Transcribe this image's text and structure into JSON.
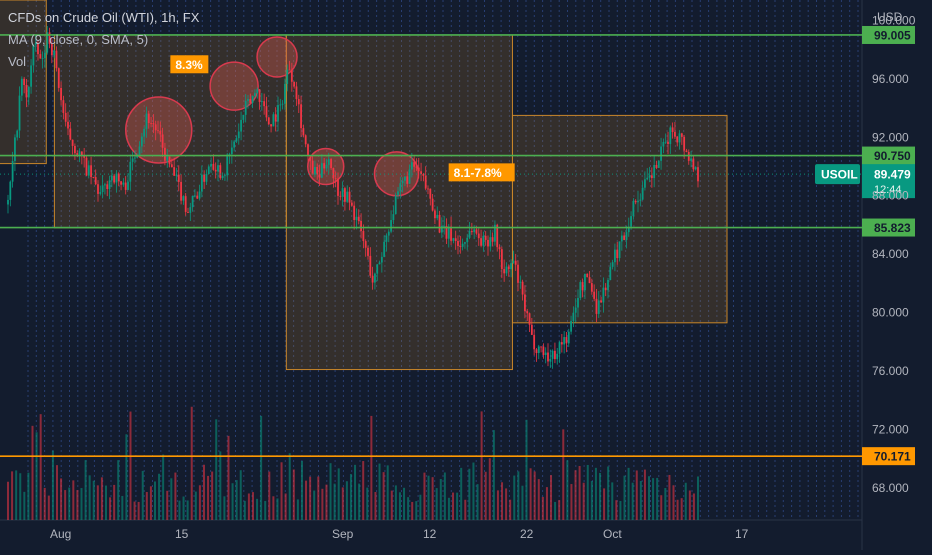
{
  "header": {
    "title": "CFDs on Crude Oil (WTI), 1h, FX",
    "indicator": "MA (9, close, 0, SMA, 5)",
    "volume": "Vol"
  },
  "chart_data": {
    "type": "candlestick",
    "symbol": "USOIL",
    "currency": "USD",
    "yaxis": {
      "ticks": [
        100,
        96,
        92,
        88,
        84,
        80,
        76,
        72,
        68
      ],
      "tick_labels": [
        "100.000",
        "96.000",
        "92.000",
        "88.000",
        "84.000",
        "80.000",
        "76.000",
        "72.000",
        "68.000"
      ],
      "range": [
        65.8,
        101.4
      ]
    },
    "xaxis": {
      "tick_labels": [
        "Aug",
        "15",
        "Sep",
        "12",
        "22",
        "Oct",
        "17"
      ]
    },
    "price_series": [
      {
        "t": 0.0,
        "v": 87.4
      },
      {
        "t": 0.6,
        "v": 91.5
      },
      {
        "t": 1.2,
        "v": 96.0
      },
      {
        "t": 1.6,
        "v": 94.5
      },
      {
        "t": 2.2,
        "v": 98.2
      },
      {
        "t": 3.0,
        "v": 97.0
      },
      {
        "t": 3.4,
        "v": 99.2
      },
      {
        "t": 4.0,
        "v": 97.5
      },
      {
        "t": 4.5,
        "v": 95.0
      },
      {
        "t": 5.0,
        "v": 92.5
      },
      {
        "t": 6.0,
        "v": 91.0
      },
      {
        "t": 7.0,
        "v": 89.5
      },
      {
        "t": 8.0,
        "v": 88.0
      },
      {
        "t": 9.0,
        "v": 89.5
      },
      {
        "t": 10.0,
        "v": 88.5
      },
      {
        "t": 11.0,
        "v": 91.0
      },
      {
        "t": 12.0,
        "v": 93.5
      },
      {
        "t": 12.8,
        "v": 92.5
      },
      {
        "t": 13.5,
        "v": 90.8
      },
      {
        "t": 14.5,
        "v": 89.0
      },
      {
        "t": 15.5,
        "v": 87.0
      },
      {
        "t": 16.5,
        "v": 88.5
      },
      {
        "t": 17.5,
        "v": 90.5
      },
      {
        "t": 18.5,
        "v": 89.5
      },
      {
        "t": 19.5,
        "v": 91.5
      },
      {
        "t": 20.5,
        "v": 94.0
      },
      {
        "t": 21.5,
        "v": 95.3
      },
      {
        "t": 22.5,
        "v": 93.0
      },
      {
        "t": 23.5,
        "v": 94.0
      },
      {
        "t": 24.2,
        "v": 97.0
      },
      {
        "t": 24.8,
        "v": 95.5
      },
      {
        "t": 25.4,
        "v": 92.5
      },
      {
        "t": 26.0,
        "v": 90.0
      },
      {
        "t": 26.8,
        "v": 89.2
      },
      {
        "t": 27.6,
        "v": 90.8
      },
      {
        "t": 28.4,
        "v": 88.5
      },
      {
        "t": 29.2,
        "v": 88.0
      },
      {
        "t": 30.0,
        "v": 86.5
      },
      {
        "t": 30.8,
        "v": 84.5
      },
      {
        "t": 31.5,
        "v": 82.0
      },
      {
        "t": 32.2,
        "v": 84.0
      },
      {
        "t": 33.0,
        "v": 86.5
      },
      {
        "t": 34.0,
        "v": 88.8
      },
      {
        "t": 35.0,
        "v": 90.0
      },
      {
        "t": 35.8,
        "v": 89.0
      },
      {
        "t": 36.6,
        "v": 87.5
      },
      {
        "t": 37.4,
        "v": 85.5
      },
      {
        "t": 38.2,
        "v": 85.3
      },
      {
        "t": 39.0,
        "v": 84.5
      },
      {
        "t": 40.0,
        "v": 85.8
      },
      {
        "t": 41.0,
        "v": 84.8
      },
      {
        "t": 42.0,
        "v": 85.5
      },
      {
        "t": 42.8,
        "v": 82.5
      },
      {
        "t": 43.6,
        "v": 83.5
      },
      {
        "t": 44.5,
        "v": 80.5
      },
      {
        "t": 45.2,
        "v": 78.0
      },
      {
        "t": 46.0,
        "v": 77.5
      },
      {
        "t": 46.8,
        "v": 76.8
      },
      {
        "t": 47.6,
        "v": 77.8
      },
      {
        "t": 48.4,
        "v": 78.5
      },
      {
        "t": 49.2,
        "v": 81.5
      },
      {
        "t": 50.0,
        "v": 82.5
      },
      {
        "t": 50.8,
        "v": 80.3
      },
      {
        "t": 51.6,
        "v": 82.0
      },
      {
        "t": 52.4,
        "v": 84.0
      },
      {
        "t": 53.2,
        "v": 85.5
      },
      {
        "t": 54.0,
        "v": 87.5
      },
      {
        "t": 54.8,
        "v": 88.5
      },
      {
        "t": 55.6,
        "v": 89.5
      },
      {
        "t": 56.4,
        "v": 91.0
      },
      {
        "t": 57.2,
        "v": 92.5
      },
      {
        "t": 58.0,
        "v": 92.0
      },
      {
        "t": 58.8,
        "v": 90.5
      },
      {
        "t": 59.5,
        "v": 89.5
      }
    ],
    "horizontal_levels": [
      {
        "value": 99.005,
        "label": "99.005",
        "color": "#4caf50"
      },
      {
        "value": 90.75,
        "label": "90.750",
        "color": "#4caf50"
      },
      {
        "value": 85.823,
        "label": "85.823",
        "color": "#4caf50"
      },
      {
        "value": 70.171,
        "label": "70.171",
        "color": "#ff9800"
      }
    ],
    "last_price": {
      "label": "USOIL",
      "value": "89.479",
      "countdown": "12:44",
      "color": "#089981"
    },
    "zones": [
      {
        "t_start": -1.0,
        "t_end": 3.3,
        "top": 101.4,
        "bottom": 90.2
      },
      {
        "t_start": 4.0,
        "t_end": 24.0,
        "top": 99.0,
        "bottom": 85.8
      },
      {
        "t_start": 24.0,
        "t_end": 43.5,
        "top": 99.0,
        "bottom": 76.1
      },
      {
        "t_start": 43.5,
        "t_end": 62.0,
        "top": 93.5,
        "bottom": 79.3
      }
    ],
    "circles": [
      {
        "t": 13.0,
        "v": 92.5,
        "r": 33
      },
      {
        "t": 19.5,
        "v": 95.5,
        "r": 24
      },
      {
        "t": 23.2,
        "v": 97.5,
        "r": 20
      },
      {
        "t": 27.4,
        "v": 90.0,
        "r": 18
      },
      {
        "t": 33.5,
        "v": 89.5,
        "r": 22
      }
    ],
    "annotations": [
      {
        "text": "8.3%",
        "t": 14.0,
        "v": 97.0,
        "color": "#ff9800"
      },
      {
        "text": "8.1-7.8%",
        "t": 38.0,
        "v": 89.6,
        "color": "#ff9800"
      }
    ]
  },
  "colors": {
    "background": "#131c2e",
    "grid": "#2f4a8a",
    "candle_up": "#089981",
    "candle_down": "#f23645",
    "zone_fill": "rgba(205,140,40,0.18)",
    "zone_stroke": "#c8862a",
    "circle_fill": "rgba(210,90,80,0.38)",
    "circle_stroke": "#d83a4e",
    "axis_text": "#b2b5be"
  }
}
